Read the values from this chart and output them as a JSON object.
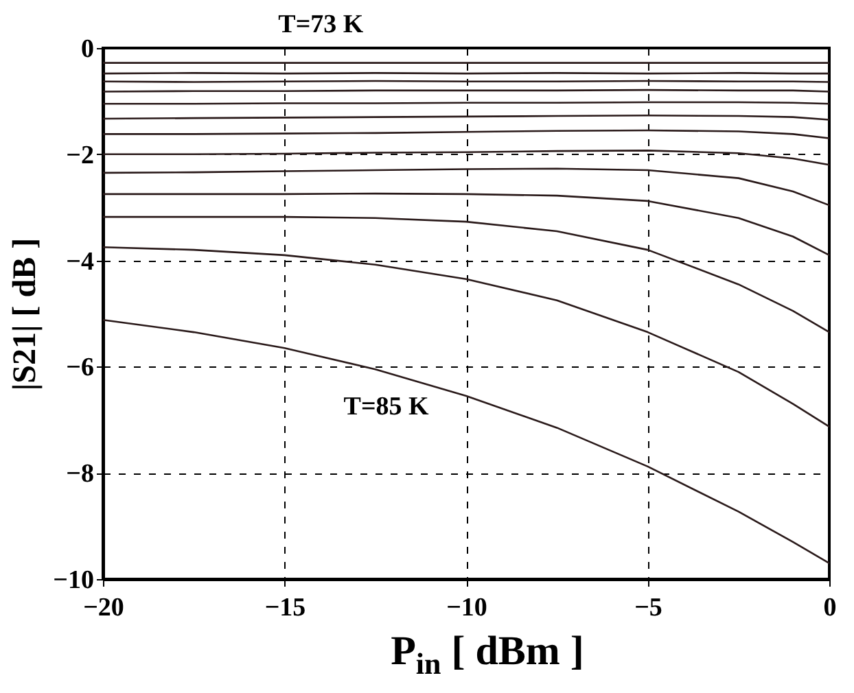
{
  "chart_data": {
    "type": "line",
    "xlabel": "P$_{in}$ [ dBm ]",
    "ylabel": "|S21| [ dB ]",
    "annotations": [
      "T=73 K",
      "T=85 K"
    ],
    "x": [
      -20,
      -17.5,
      -15,
      -12.5,
      -10,
      -7.5,
      -5,
      -2.5,
      -1,
      0
    ],
    "series": [
      {
        "color": "#2a1a1a",
        "values": [
          -0.28,
          -0.28,
          -0.28,
          -0.28,
          -0.28,
          -0.28,
          -0.28,
          -0.28,
          -0.28,
          -0.28
        ]
      },
      {
        "color": "#2a1a1a",
        "values": [
          -0.48,
          -0.47,
          -0.48,
          -0.47,
          -0.48,
          -0.47,
          -0.48,
          -0.47,
          -0.48,
          -0.48
        ]
      },
      {
        "color": "#2a1a1a",
        "values": [
          -0.63,
          -0.64,
          -0.63,
          -0.62,
          -0.63,
          -0.63,
          -0.62,
          -0.63,
          -0.63,
          -0.64
        ]
      },
      {
        "color": "#2a1a1a",
        "values": [
          -0.82,
          -0.81,
          -0.81,
          -0.8,
          -0.8,
          -0.8,
          -0.79,
          -0.8,
          -0.8,
          -0.82
        ]
      },
      {
        "color": "#2a1a1a",
        "values": [
          -1.05,
          -1.05,
          -1.04,
          -1.04,
          -1.03,
          -1.03,
          -1.02,
          -1.02,
          -1.03,
          -1.05
        ]
      },
      {
        "color": "#2a1a1a",
        "values": [
          -1.33,
          -1.32,
          -1.31,
          -1.3,
          -1.29,
          -1.28,
          -1.27,
          -1.28,
          -1.3,
          -1.35
        ]
      },
      {
        "color": "#2a1a1a",
        "values": [
          -1.62,
          -1.62,
          -1.61,
          -1.6,
          -1.58,
          -1.56,
          -1.55,
          -1.57,
          -1.62,
          -1.7
        ]
      },
      {
        "color": "#2a1a1a",
        "values": [
          -2.0,
          -2.0,
          -1.99,
          -1.97,
          -1.96,
          -1.94,
          -1.93,
          -1.98,
          -2.08,
          -2.2
        ]
      },
      {
        "color": "#2a1a1a",
        "values": [
          -2.35,
          -2.34,
          -2.32,
          -2.3,
          -2.28,
          -2.27,
          -2.3,
          -2.45,
          -2.7,
          -2.96
        ]
      },
      {
        "color": "#2a1a1a",
        "values": [
          -2.75,
          -2.75,
          -2.75,
          -2.74,
          -2.75,
          -2.78,
          -2.88,
          -3.2,
          -3.55,
          -3.9
        ]
      },
      {
        "color": "#2a1a1a",
        "values": [
          -3.18,
          -3.18,
          -3.18,
          -3.2,
          -3.27,
          -3.45,
          -3.8,
          -4.45,
          -4.95,
          -5.35
        ]
      },
      {
        "color": "#2a1a1a",
        "values": [
          -3.75,
          -3.8,
          -3.9,
          -4.08,
          -4.35,
          -4.75,
          -5.35,
          -6.1,
          -6.7,
          -7.13
        ]
      },
      {
        "color": "#2a1a1a",
        "values": [
          -5.12,
          -5.35,
          -5.65,
          -6.05,
          -6.55,
          -7.15,
          -7.88,
          -8.73,
          -9.3,
          -9.7
        ]
      }
    ],
    "xlim": [
      -20,
      0
    ],
    "xticks": [
      -20,
      -15,
      -10,
      -5,
      0
    ],
    "ylim": [
      -10,
      0
    ],
    "yticks": [
      -10,
      -8,
      -6,
      -4,
      -2,
      0
    ],
    "grid": true,
    "line_style": "solid",
    "marker": "none"
  }
}
